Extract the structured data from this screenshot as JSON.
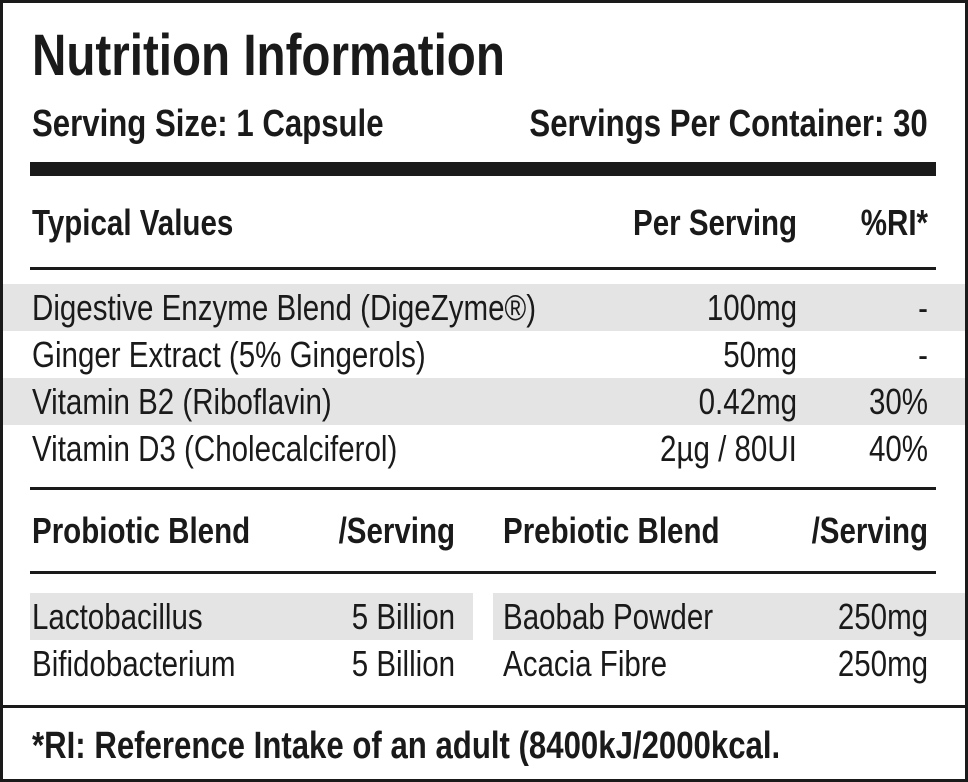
{
  "title": "Nutrition Information",
  "serving_size": "Serving Size: 1 Capsule",
  "servings_per_container": "Servings Per Container: 30",
  "table": {
    "headers": [
      "Typical Values",
      "Per Serving",
      "%RI*"
    ],
    "rows": [
      [
        "Digestive Enzyme Blend (DigeZyme®)",
        "100mg",
        "-"
      ],
      [
        "Ginger Extract (5% Gingerols)",
        "50mg",
        "-"
      ],
      [
        "Vitamin B2 (Riboflavin)",
        "0.42mg",
        "30%"
      ],
      [
        "Vitamin D3 (Cholecalciferol)",
        "2µg / 80UI",
        "40%"
      ]
    ]
  },
  "probiotic": {
    "headers": [
      "Probiotic Blend",
      "/Serving"
    ],
    "rows": [
      [
        "Lactobacillus",
        "5 Billion"
      ],
      [
        "Bifidobacterium",
        "5 Billion"
      ]
    ]
  },
  "prebiotic": {
    "headers": [
      "Prebiotic Blend",
      "/Serving"
    ],
    "rows": [
      [
        "Baobab Powder",
        "250mg"
      ],
      [
        "Acacia Fibre",
        "250mg"
      ]
    ]
  },
  "footnote": "*RI: Reference Intake of an adult (8400kJ/2000kcal."
}
